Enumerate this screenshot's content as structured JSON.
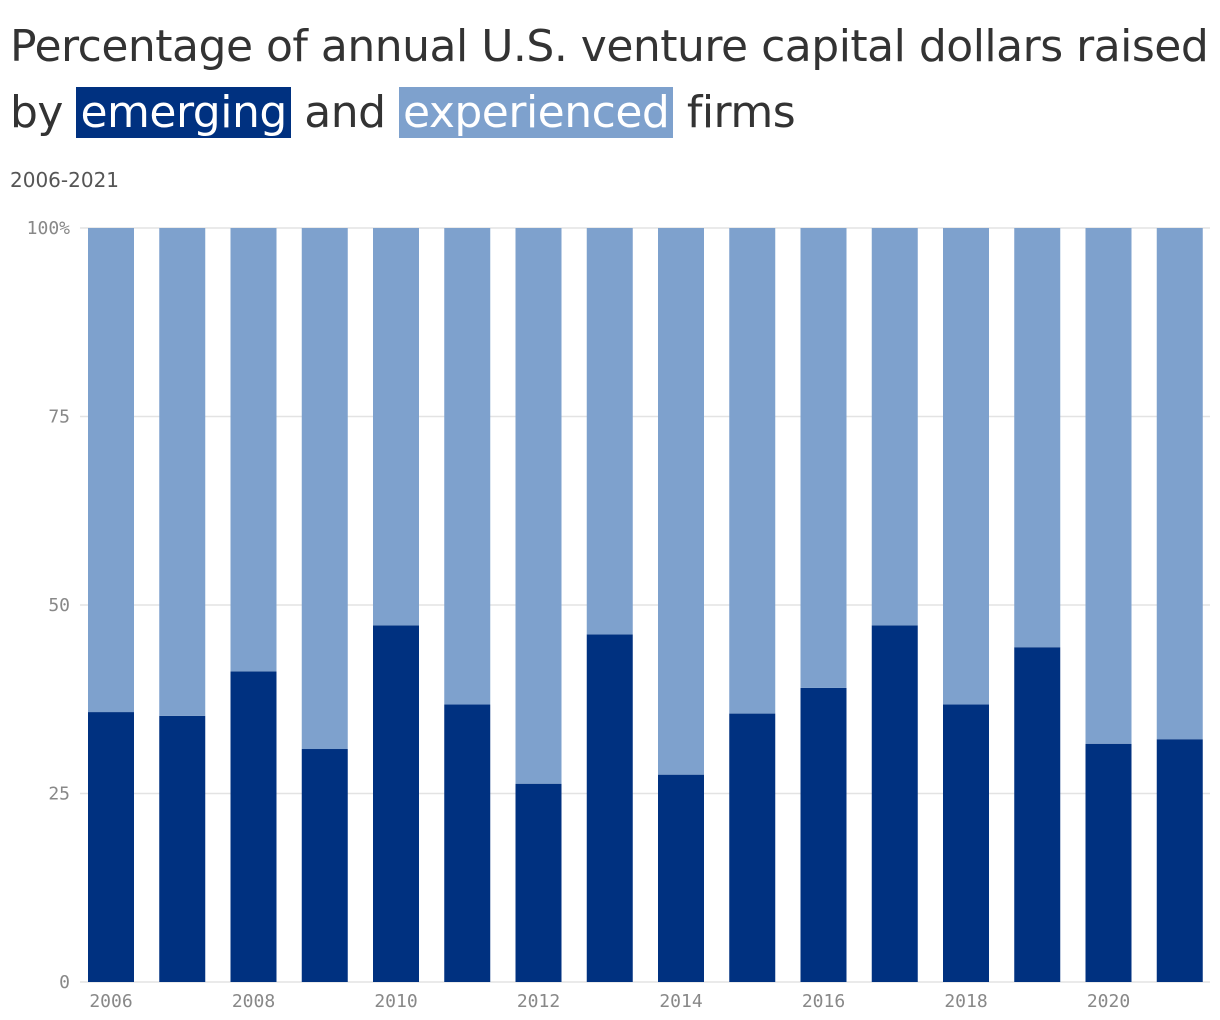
{
  "title": {
    "before": "Percentage of annual U.S. venture capital dollars raised by ",
    "emerging": "emerging",
    "middle": " and ",
    "experienced": "experienced",
    "after": " firms"
  },
  "subtitle": "2006-2021",
  "colors": {
    "emerging": "#003180",
    "experienced": "#7ea1cd",
    "grid": "#e3e3e3",
    "axis_text": "#888888"
  },
  "chart_data": {
    "type": "bar",
    "stacked": true,
    "categories": [
      "2006",
      "2007",
      "2008",
      "2009",
      "2010",
      "2011",
      "2012",
      "2013",
      "2014",
      "2015",
      "2016",
      "2017",
      "2018",
      "2019",
      "2020",
      "2021"
    ],
    "x_tick_labels": [
      "2006",
      "2008",
      "2010",
      "2012",
      "2014",
      "2016",
      "2018",
      "2020"
    ],
    "y_tick_labels": [
      "0",
      "25",
      "50",
      "75",
      "100%"
    ],
    "ylim": [
      0,
      100
    ],
    "grid": true,
    "series": [
      {
        "name": "emerging",
        "color": "#003180",
        "values": [
          35.8,
          35.3,
          41.2,
          30.9,
          47.3,
          36.8,
          26.3,
          46.1,
          27.5,
          35.6,
          39.0,
          47.3,
          36.8,
          44.4,
          31.6,
          32.2
        ]
      },
      {
        "name": "experienced",
        "color": "#7ea1cd",
        "values": [
          64.2,
          64.7,
          58.8,
          69.1,
          52.7,
          63.2,
          73.7,
          53.9,
          72.5,
          64.4,
          61.0,
          52.7,
          63.2,
          55.6,
          68.4,
          67.8
        ]
      }
    ]
  }
}
